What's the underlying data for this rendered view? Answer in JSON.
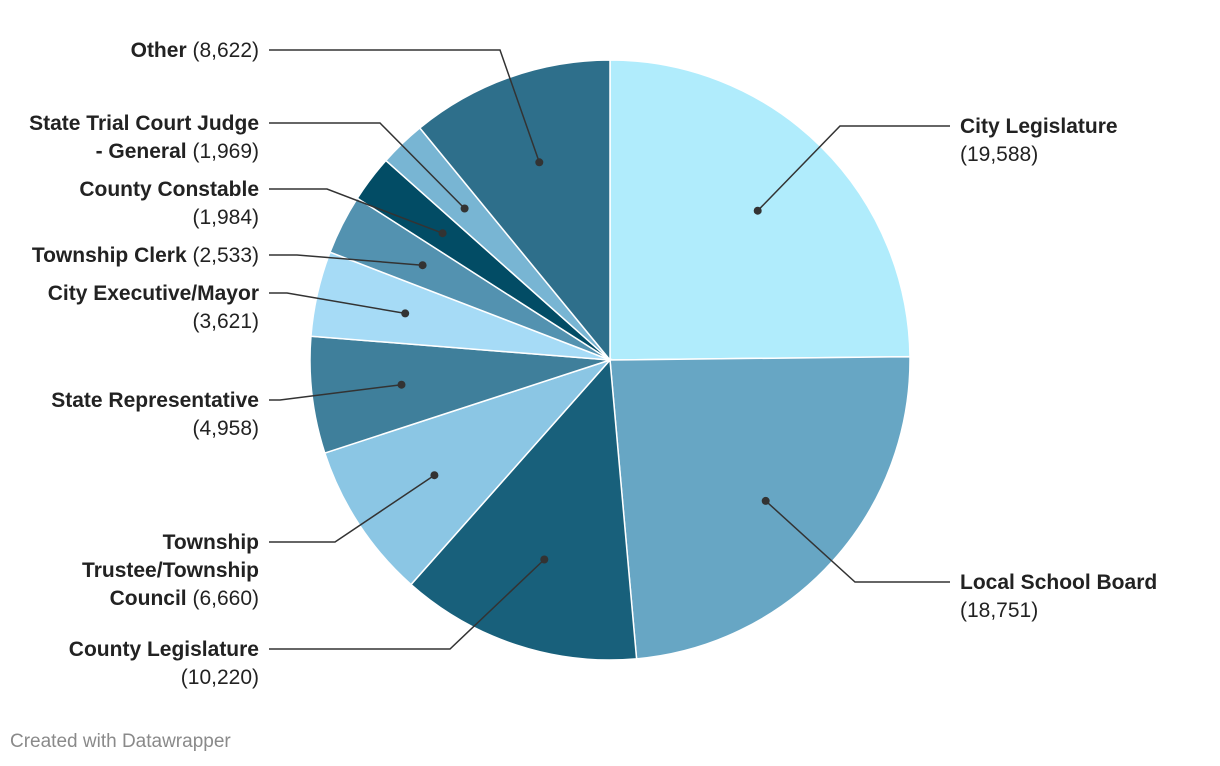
{
  "chart_data": {
    "type": "pie",
    "slices": [
      {
        "label": "City Legislature",
        "value": 19588,
        "value_text": "(19,588)",
        "color": "#b0ecfc"
      },
      {
        "label": "Local School Board",
        "value": 18751,
        "value_text": "(18,751)",
        "color": "#67a6c4"
      },
      {
        "label": "County Legislature",
        "value": 10220,
        "value_text": "(10,220)",
        "color": "#18607b"
      },
      {
        "label": "Township Trustee/Township Council",
        "value": 6660,
        "value_text": "(6,660)",
        "color": "#8bc6e4"
      },
      {
        "label": "State Representative",
        "value": 4958,
        "value_text": "(4,958)",
        "color": "#3f7f9b"
      },
      {
        "label": "City Executive/Mayor",
        "value": 3621,
        "value_text": "(3,621)",
        "color": "#a6dbf6"
      },
      {
        "label": "Township Clerk",
        "value": 2533,
        "value_text": "(2,533)",
        "color": "#5392b0"
      },
      {
        "label": "County Constable",
        "value": 1984,
        "value_text": "(1,984)",
        "color": "#024c65"
      },
      {
        "label": "State Trial Court Judge - General",
        "value": 1969,
        "value_text": "(1,969)",
        "color": "#78b5d3"
      },
      {
        "label": "Other",
        "value": 8622,
        "value_text": "(8,622)",
        "color": "#2e6f8b"
      }
    ]
  },
  "footer": {
    "credit": "Created with Datawrapper"
  }
}
